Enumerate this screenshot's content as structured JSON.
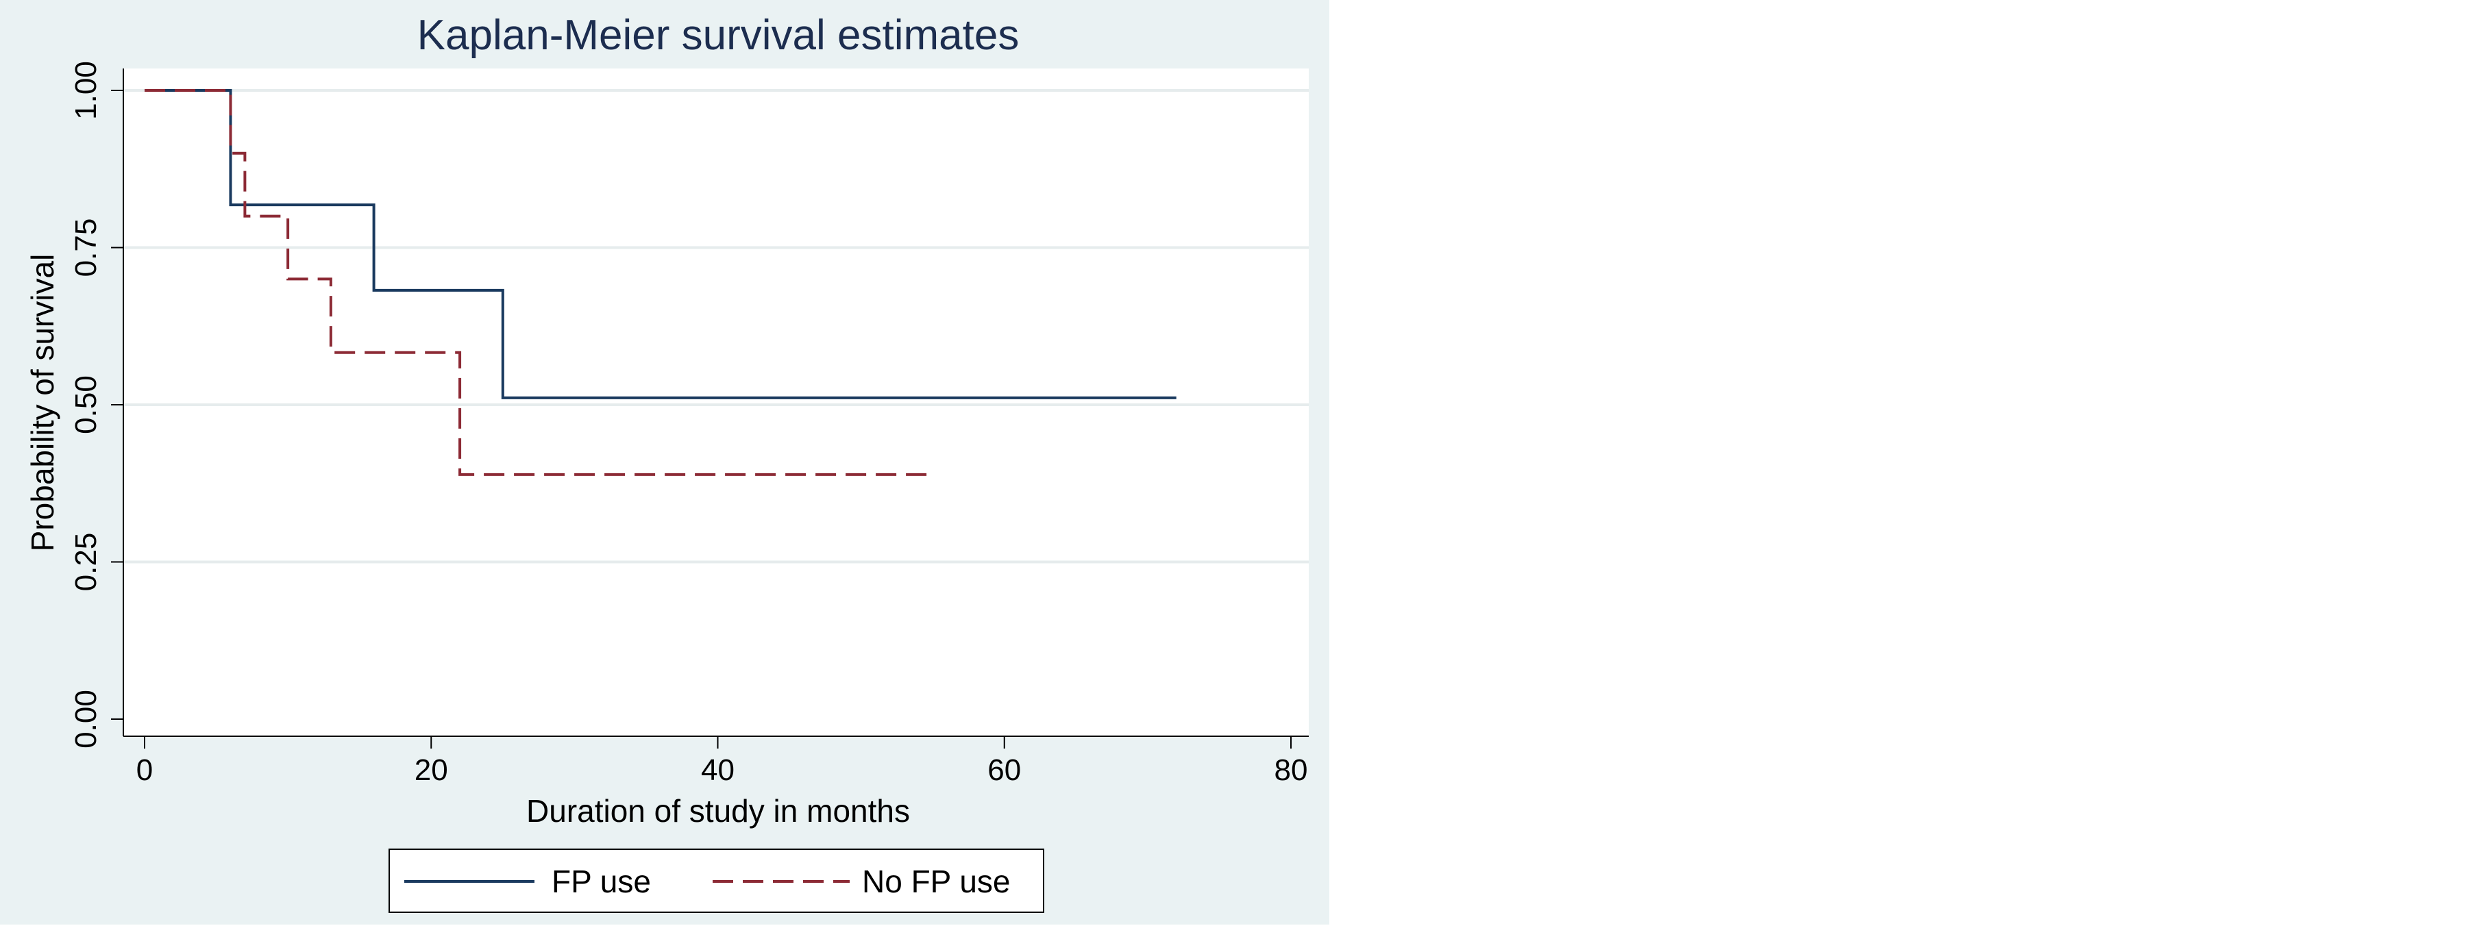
{
  "chart_data": {
    "type": "line",
    "step": true,
    "title": "Kaplan-Meier survival estimates",
    "xlabel": "Duration of study in months",
    "ylabel": "Probability of survival",
    "xlim": [
      0,
      80
    ],
    "ylim": [
      0,
      1
    ],
    "xticks": [
      0,
      20,
      40,
      60,
      80
    ],
    "yticks": [
      0,
      0.25,
      0.5,
      0.75,
      1
    ],
    "ytick_labels": [
      "0.00",
      "0.25",
      "0.50",
      "0.75",
      "1.00"
    ],
    "grid": true,
    "legend_position": "bottom",
    "series": [
      {
        "name": "FP use",
        "color": "#1a3a5f",
        "dash": "solid",
        "points": [
          [
            0,
            1.0
          ],
          [
            6,
            0.818
          ],
          [
            16,
            0.682
          ],
          [
            25,
            0.511
          ],
          [
            72,
            0.511
          ]
        ]
      },
      {
        "name": "No FP use",
        "color": "#8c2a35",
        "dash": "dashed",
        "points": [
          [
            0,
            1.0
          ],
          [
            6,
            0.9
          ],
          [
            7,
            0.8
          ],
          [
            10,
            0.7
          ],
          [
            13,
            0.583
          ],
          [
            22,
            0.389
          ],
          [
            55,
            0.389
          ]
        ]
      }
    ]
  }
}
